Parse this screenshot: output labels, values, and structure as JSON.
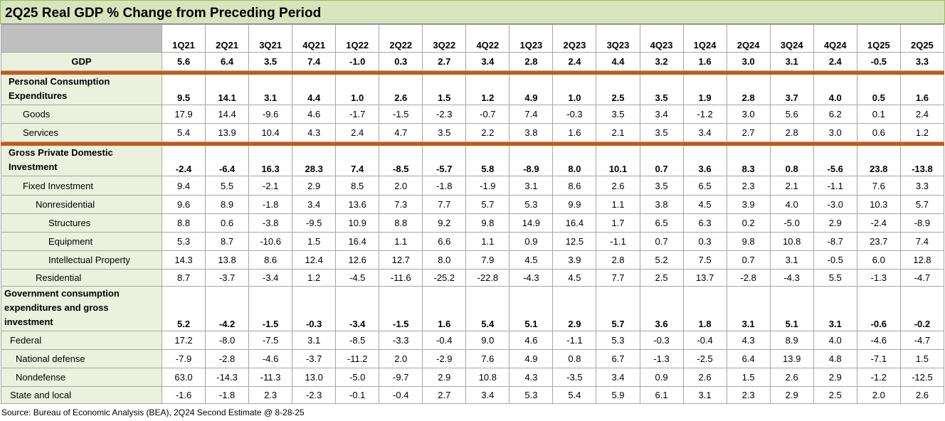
{
  "title": "2Q25 Real GDP % Change from Preceding Period",
  "table": {
    "columns": [
      "1Q21",
      "2Q21",
      "3Q21",
      "4Q21",
      "1Q22",
      "2Q22",
      "3Q22",
      "4Q22",
      "1Q23",
      "2Q23",
      "3Q23",
      "4Q23",
      "1Q24",
      "2Q24",
      "3Q24",
      "4Q24",
      "1Q25",
      "2Q25"
    ],
    "rows": [
      {
        "label": "GDP",
        "values": [
          "5.6",
          "6.4",
          "3.5",
          "7.4",
          "-1.0",
          "0.3",
          "2.7",
          "3.4",
          "2.8",
          "2.4",
          "4.4",
          "3.2",
          "1.6",
          "3.0",
          "3.1",
          "2.4",
          "-0.5",
          "3.3"
        ]
      },
      {
        "label": "Personal Consumption Expenditures",
        "values": [
          "9.5",
          "14.1",
          "3.1",
          "4.4",
          "1.0",
          "2.6",
          "1.5",
          "1.2",
          "4.9",
          "1.0",
          "2.5",
          "3.5",
          "1.9",
          "2.8",
          "3.7",
          "4.0",
          "0.5",
          "1.6"
        ]
      },
      {
        "label": "Goods",
        "values": [
          "17.9",
          "14.4",
          "-9.6",
          "4.6",
          "-1.7",
          "-1.5",
          "-2.3",
          "-0.7",
          "7.4",
          "-0.3",
          "3.5",
          "3.4",
          "-1.2",
          "3.0",
          "5.6",
          "6.2",
          "0.1",
          "2.4"
        ]
      },
      {
        "label": "Services",
        "values": [
          "5.4",
          "13.9",
          "10.4",
          "4.3",
          "2.4",
          "4.7",
          "3.5",
          "2.2",
          "3.8",
          "1.6",
          "2.1",
          "3.5",
          "3.4",
          "2.7",
          "2.8",
          "3.0",
          "0.6",
          "1.2"
        ]
      },
      {
        "label": "Gross Private Domestic Investment",
        "values": [
          "-2.4",
          "-6.4",
          "16.3",
          "28.3",
          "7.4",
          "-8.5",
          "-5.7",
          "5.8",
          "-8.9",
          "8.0",
          "10.1",
          "0.7",
          "3.6",
          "8.3",
          "0.8",
          "-5.6",
          "23.8",
          "-13.8"
        ]
      },
      {
        "label": "Fixed Investment",
        "values": [
          "9.4",
          "5.5",
          "-2.1",
          "2.9",
          "8.5",
          "2.0",
          "-1.8",
          "-1.9",
          "3.1",
          "8.6",
          "2.6",
          "3.5",
          "6.5",
          "2.3",
          "2.1",
          "-1.1",
          "7.6",
          "3.3"
        ]
      },
      {
        "label": "Nonresidential",
        "values": [
          "9.6",
          "8.9",
          "-1.8",
          "3.4",
          "13.6",
          "7.3",
          "7.7",
          "5.7",
          "5.3",
          "9.9",
          "1.1",
          "3.8",
          "4.5",
          "3.9",
          "4.0",
          "-3.0",
          "10.3",
          "5.7"
        ]
      },
      {
        "label": "Structures",
        "values": [
          "8.8",
          "0.6",
          "-3.8",
          "-9.5",
          "10.9",
          "8.8",
          "9.2",
          "9.8",
          "14.9",
          "16.4",
          "1.7",
          "6.5",
          "6.3",
          "0.2",
          "-5.0",
          "2.9",
          "-2.4",
          "-8.9"
        ]
      },
      {
        "label": "Equipment",
        "values": [
          "5.3",
          "8.7",
          "-10.6",
          "1.5",
          "16.4",
          "1.1",
          "6.6",
          "1.1",
          "0.9",
          "12.5",
          "-1.1",
          "0.7",
          "0.3",
          "9.8",
          "10.8",
          "-8.7",
          "23.7",
          "7.4"
        ]
      },
      {
        "label": "Intellectual Property",
        "values": [
          "14.3",
          "13.8",
          "8.6",
          "12.4",
          "12.6",
          "12.7",
          "8.0",
          "7.9",
          "4.5",
          "3.9",
          "2.8",
          "5.2",
          "7.5",
          "0.7",
          "3.1",
          "-0.5",
          "6.0",
          "12.8"
        ]
      },
      {
        "label": "Residential",
        "values": [
          "8.7",
          "-3.7",
          "-3.4",
          "1.2",
          "-4.5",
          "-11.6",
          "-25.2",
          "-22.8",
          "-4.3",
          "4.5",
          "7.7",
          "2.5",
          "13.7",
          "-2.8",
          "-4.3",
          "5.5",
          "-1.3",
          "-4.7"
        ]
      },
      {
        "label": "Government consumption expenditures and gross investment",
        "values": [
          "5.2",
          "-4.2",
          "-1.5",
          "-0.3",
          "-3.4",
          "-1.5",
          "1.6",
          "5.4",
          "5.1",
          "2.9",
          "5.7",
          "3.6",
          "1.8",
          "3.1",
          "5.1",
          "3.1",
          "-0.6",
          "-0.2"
        ]
      },
      {
        "label": "Federal",
        "values": [
          "17.2",
          "-8.0",
          "-7.5",
          "3.1",
          "-8.5",
          "-3.3",
          "-0.4",
          "9.0",
          "4.6",
          "-1.1",
          "5.3",
          "-0.3",
          "-0.4",
          "4.3",
          "8.9",
          "4.0",
          "-4.6",
          "-4.7"
        ]
      },
      {
        "label": "National defense",
        "values": [
          "-7.9",
          "-2.8",
          "-4.6",
          "-3.7",
          "-11.2",
          "2.0",
          "-2.9",
          "7.6",
          "4.9",
          "0.8",
          "6.7",
          "-1.3",
          "-2.5",
          "6.4",
          "13.9",
          "4.8",
          "-7.1",
          "1.5"
        ]
      },
      {
        "label": "Nondefense",
        "values": [
          "63.0",
          "-14.3",
          "-11.3",
          "13.0",
          "-5.0",
          "-9.7",
          "2.9",
          "10.8",
          "4.3",
          "-3.5",
          "3.4",
          "0.9",
          "2.6",
          "1.5",
          "2.6",
          "2.9",
          "-1.2",
          "-12.5"
        ]
      },
      {
        "label": "State and local",
        "values": [
          "-1.6",
          "-1.8",
          "2.3",
          "-2.3",
          "-0.1",
          "-0.4",
          "2.7",
          "3.4",
          "5.3",
          "5.4",
          "5.9",
          "6.1",
          "3.1",
          "2.3",
          "2.9",
          "2.5",
          "2.0",
          "2.6"
        ]
      }
    ]
  },
  "source": "Source: Bureau of Economic Analysis (BEA), 2Q24 Second Estimate @ 8-28-25"
}
